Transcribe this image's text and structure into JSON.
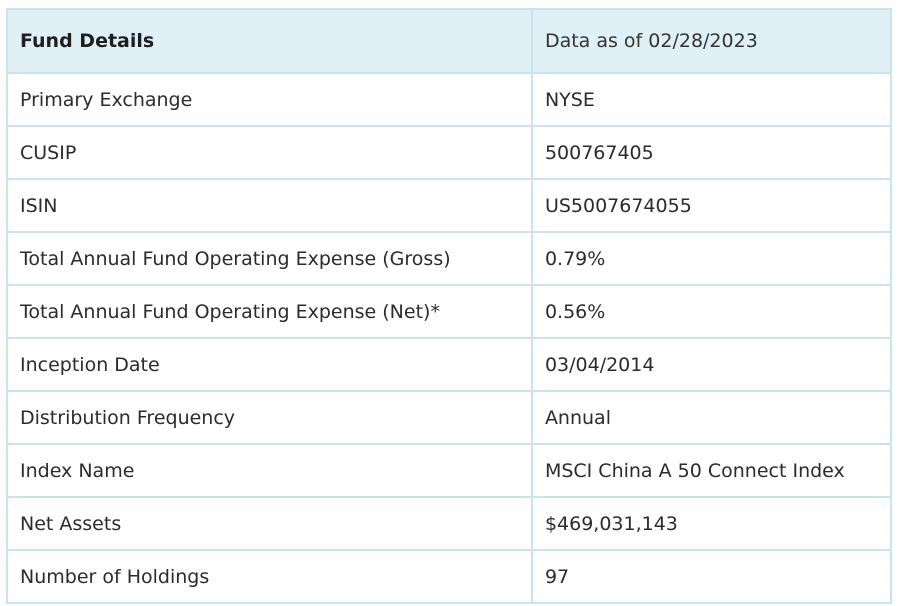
{
  "header": {
    "title": "Fund Details",
    "as_of": "Data as of 02/28/2023"
  },
  "rows": [
    {
      "label": "Primary Exchange",
      "value": "NYSE"
    },
    {
      "label": "CUSIP",
      "value": "500767405"
    },
    {
      "label": "ISIN",
      "value": "US5007674055"
    },
    {
      "label": "Total Annual Fund Operating Expense (Gross)",
      "value": "0.79%"
    },
    {
      "label": "Total Annual Fund Operating Expense (Net)*",
      "value": "0.56%"
    },
    {
      "label": "Inception Date",
      "value": "03/04/2014"
    },
    {
      "label": "Distribution Frequency",
      "value": "Annual"
    },
    {
      "label": "Index Name",
      "value": "MSCI China A 50 Connect Index"
    },
    {
      "label": "Net Assets",
      "value": "$469,031,143"
    },
    {
      "label": "Number of Holdings",
      "value": "97"
    }
  ],
  "colors": {
    "header_bg": "#dff0f6",
    "border": "#c9e4ec",
    "text": "#2b2b2b"
  }
}
